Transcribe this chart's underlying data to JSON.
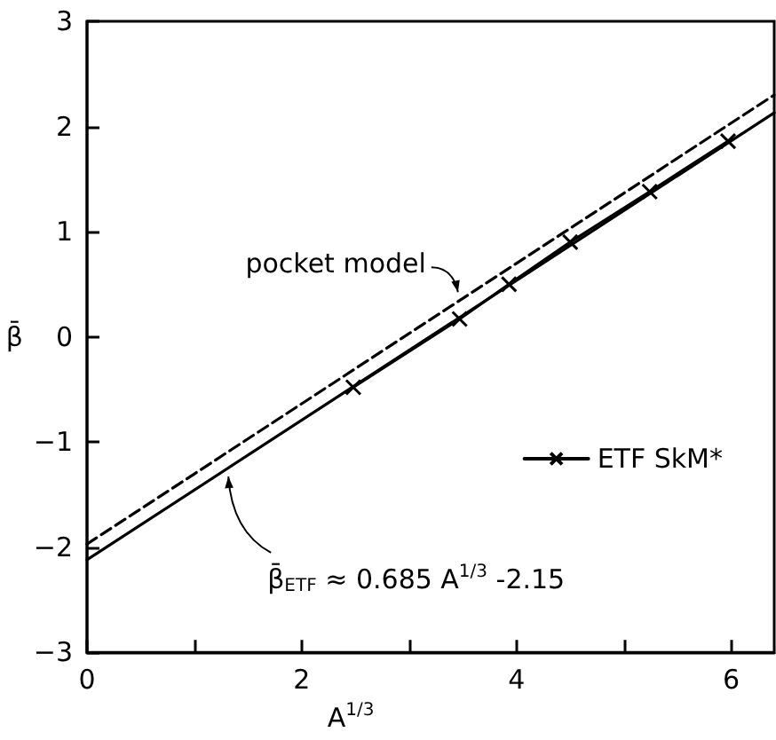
{
  "chart_data": {
    "type": "line",
    "xlabel": "A$^{1/3}$",
    "ylabel": "β̄",
    "xlim": [
      0,
      6.4
    ],
    "ylim": [
      -3,
      3
    ],
    "xticks": [
      0,
      {
        "value": 1,
        "label": null
      },
      2,
      {
        "value": 3,
        "label": null
      },
      4,
      {
        "value": 5,
        "label": null
      },
      6
    ],
    "yticks": [
      -3,
      -2,
      -1,
      0,
      1,
      2,
      3
    ],
    "grid": false,
    "legend": "right",
    "series": [
      {
        "name": "ETF SkM*",
        "color": "#000000",
        "marker": "cross",
        "line_style": "solid",
        "x": [
          2.48,
          3.47,
          3.93,
          4.5,
          5.24,
          5.97
        ],
        "values": [
          -0.48,
          0.17,
          0.5,
          0.9,
          1.38,
          1.86
        ]
      },
      {
        "type": "line",
        "color": "#000000",
        "marker": "none",
        "line_style": "solid",
        "x": [
          0,
          6.4
        ],
        "values": [
          -2.12,
          2.13
        ]
      },
      {
        "name": "pocket model",
        "color": "#000000",
        "marker": "none",
        "line_style": "dashed",
        "x": [
          0,
          6.4
        ],
        "values": [
          -1.97,
          2.3
        ]
      }
    ],
    "annotations": [
      {
        "text": "β̄$_{ETF}$ ≈ 0.685 A$^{1/3}$ -2.15",
        "x": 1.3,
        "y": -1.26
      }
    ]
  }
}
